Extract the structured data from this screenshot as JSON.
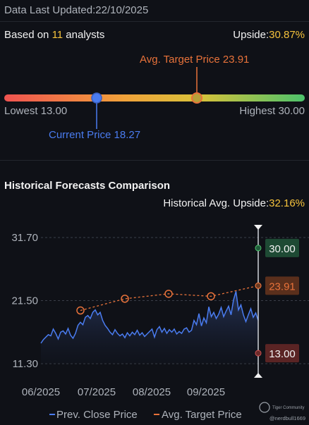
{
  "header": {
    "updated_label": "Data Last Updated:",
    "updated_date": "22/10/2025",
    "based_prefix": "Based on ",
    "analyst_count": "11",
    "based_suffix": " analysts",
    "upside_label": "Upside:",
    "upside_value": "30.87%"
  },
  "range_bar": {
    "avg_target_label": "Avg. Target Price 23.91",
    "lowest_label": "Lowest 13.00",
    "highest_label": "Highest 30.00",
    "current_label": "Current Price 18.27",
    "low": 13.0,
    "high": 30.0,
    "current": 18.27,
    "avg_target": 23.91,
    "gradient_colors": [
      "#ef5350",
      "#f0a23a",
      "#d8c23a",
      "#4cc26b"
    ]
  },
  "history": {
    "title": "Historical Forecasts Comparison",
    "avg_upside_label": "Historical Avg. Upside:",
    "avg_upside_value": "32.16%"
  },
  "chart_data": {
    "type": "line",
    "y_ticks": [
      "31.70",
      "21.50",
      "11.30"
    ],
    "x_ticks": [
      "06/2025",
      "07/2025",
      "08/2025",
      "09/2025"
    ],
    "ylim": [
      11.3,
      31.7
    ],
    "series": [
      {
        "name": "Prev. Close Price",
        "color": "#4a7cf0",
        "values": [
          14.6,
          15.2,
          15.6,
          16.0,
          15.8,
          16.9,
          16.2,
          15.3,
          16.4,
          16.6,
          16.1,
          17.0,
          15.9,
          15.4,
          16.2,
          17.5,
          18.0,
          17.6,
          18.8,
          19.1,
          18.6,
          19.6,
          20.0,
          19.2,
          19.6,
          18.3,
          17.5,
          17.0,
          16.4,
          16.0,
          16.8,
          16.2,
          15.8,
          16.1,
          15.5,
          16.3,
          15.8,
          16.4,
          16.0,
          16.7,
          15.9,
          16.3,
          15.7,
          16.1,
          16.5,
          16.9,
          15.6,
          16.8,
          17.3,
          16.4,
          17.0,
          16.2,
          16.8,
          16.4,
          16.9,
          16.1,
          16.5,
          16.2,
          16.9,
          17.1,
          16.4,
          16.7,
          18.3,
          17.6,
          19.4,
          17.4,
          18.7,
          17.9,
          20.5,
          18.9,
          19.6,
          18.6,
          19.3,
          20.4,
          18.9,
          19.8,
          20.6,
          19.2,
          21.6,
          23.0,
          20.0,
          20.8,
          19.2,
          18.1,
          19.2,
          20.2,
          18.8,
          19.5,
          18.3
        ]
      },
      {
        "name": "Avg. Target Price",
        "color": "#e8723a",
        "values": [
          19.9,
          21.8,
          22.6,
          22.2,
          23.91
        ]
      }
    ],
    "range_labels": {
      "high": "30.00",
      "avg": "23.91",
      "low": "13.00"
    },
    "legend": {
      "close_label": "Prev. Close Price",
      "target_label": "Avg. Target Price"
    }
  },
  "watermark": {
    "brand": "Tiger Community",
    "user": "@nerdbull1669"
  }
}
